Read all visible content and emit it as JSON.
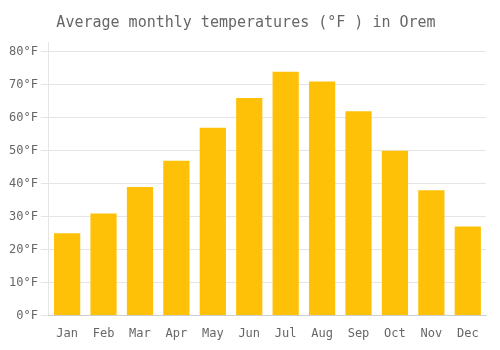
{
  "chart_data": {
    "type": "bar",
    "title": "Average monthly temperatures (°F ) in Orem",
    "categories": [
      "Jan",
      "Feb",
      "Mar",
      "Apr",
      "May",
      "Jun",
      "Jul",
      "Aug",
      "Sep",
      "Oct",
      "Nov",
      "Dec"
    ],
    "values": [
      25,
      31,
      39,
      47,
      57,
      66,
      74,
      71,
      62,
      50,
      38,
      27
    ],
    "color": "#FFC107",
    "ylim": [
      0,
      83
    ],
    "yticks": [
      {
        "value": 0,
        "label": "0°F"
      },
      {
        "value": 10,
        "label": "10°F"
      },
      {
        "value": 20,
        "label": "20°F"
      },
      {
        "value": 30,
        "label": "30°F"
      },
      {
        "value": 40,
        "label": "40°F"
      },
      {
        "value": 50,
        "label": "50°F"
      },
      {
        "value": 60,
        "label": "60°F"
      },
      {
        "value": 70,
        "label": "70°F"
      },
      {
        "value": 80,
        "label": "80°F"
      }
    ],
    "grid": true
  }
}
